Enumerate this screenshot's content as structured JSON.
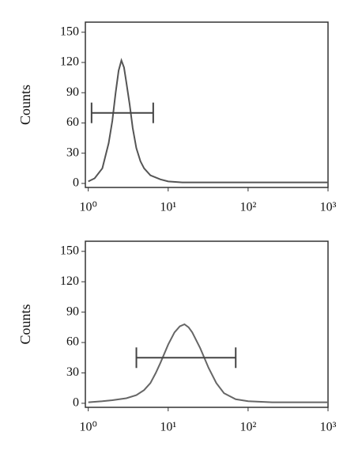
{
  "chart_data": [
    {
      "type": "line",
      "log_x": true,
      "y_label": "Counts",
      "color": "#555555",
      "x": [
        1,
        1.2,
        1.5,
        1.8,
        2,
        2.2,
        2.4,
        2.6,
        2.8,
        3,
        3.3,
        3.6,
        4,
        4.5,
        5,
        6,
        8,
        10,
        15,
        20,
        50,
        100,
        300,
        1000
      ],
      "values": [
        2,
        5,
        15,
        40,
        62,
        90,
        112,
        122,
        115,
        100,
        78,
        55,
        35,
        22,
        15,
        8,
        4,
        2,
        1,
        1,
        1,
        1,
        1,
        1
      ],
      "gate": {
        "x": [
          1.1,
          6.5
        ],
        "y": 70
      },
      "xlim": [
        0.92,
        1000
      ],
      "ylim": [
        -4,
        160
      ],
      "xticks": [
        {
          "value": 1,
          "label": "10⁰"
        },
        {
          "value": 10,
          "label": "10¹"
        },
        {
          "value": 100,
          "label": "10²"
        },
        {
          "value": 1000,
          "label": "10³"
        }
      ],
      "yticks": [
        0,
        30,
        60,
        90,
        120,
        150
      ],
      "grid": false
    },
    {
      "type": "line",
      "log_x": true,
      "y_label": "Counts",
      "color": "#666666",
      "x": [
        1,
        1.5,
        2,
        3,
        4,
        5,
        6,
        7,
        8,
        10,
        12,
        14,
        16,
        18,
        20,
        25,
        32,
        40,
        50,
        70,
        100,
        200,
        1000
      ],
      "values": [
        1,
        2,
        3,
        5,
        8,
        13,
        20,
        30,
        40,
        58,
        70,
        76,
        78,
        75,
        70,
        55,
        35,
        20,
        10,
        4,
        2,
        1,
        1
      ],
      "gate": {
        "x": [
          4,
          70
        ],
        "y": 45
      },
      "xlim": [
        0.92,
        1000
      ],
      "ylim": [
        -4,
        160
      ],
      "xticks": [
        {
          "value": 1,
          "label": "10⁰"
        },
        {
          "value": 10,
          "label": "10¹"
        },
        {
          "value": 100,
          "label": "10²"
        },
        {
          "value": 1000,
          "label": "10³"
        }
      ],
      "yticks": [
        0,
        30,
        60,
        90,
        120,
        150
      ],
      "grid": false
    }
  ]
}
